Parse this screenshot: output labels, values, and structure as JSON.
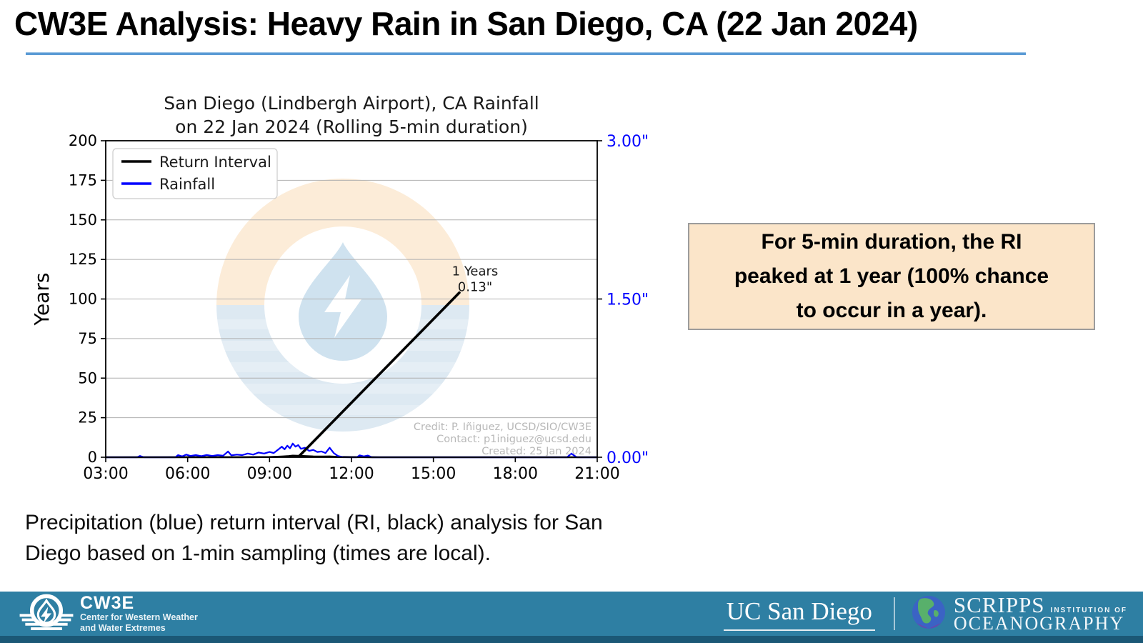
{
  "slide": {
    "title": "CW3E Analysis: Heavy Rain in San Diego, CA (22 Jan 2024)",
    "underline_color": "#5b9bd5",
    "caption_line1": "Precipitation (blue) return interval (RI, black) analysis for San",
    "caption_line2": "Diego based on 1-min sampling (times are local).",
    "callout": {
      "line1": "For 5-min duration, the RI",
      "line2": "peaked at 1 year (100% chance",
      "line3": "to occur in a year).",
      "bg_color": "#fbe5c9",
      "border_color": "#9c9c9c"
    }
  },
  "chart_data": {
    "type": "line",
    "title_line1": "San Diego (Lindbergh Airport), CA Rainfall",
    "title_line2": "on 22 Jan 2024 (Rolling 5-min duration)",
    "ylabel_left": "Years",
    "left_range": [
      0,
      200
    ],
    "left_ticks": [
      0,
      25,
      50,
      75,
      100,
      125,
      150,
      175,
      200
    ],
    "right_range": [
      0,
      3
    ],
    "right_tick_values": [
      0,
      1.5,
      3
    ],
    "right_tick_labels": [
      "0.00\"",
      "1.50\"",
      "3.00\""
    ],
    "right_axis_color": "#0000ff",
    "x_range_hours": [
      3,
      21
    ],
    "x_tick_hours": [
      3,
      6,
      9,
      12,
      15,
      18,
      21
    ],
    "x_tick_labels": [
      "03:00",
      "06:00",
      "09:00",
      "12:00",
      "15:00",
      "18:00",
      "21:00"
    ],
    "grid": "horizontal",
    "gridline_color": "#b0b0b0",
    "legend_position": "upper left",
    "legend": [
      {
        "label": "Return Interval",
        "color": "#000000"
      },
      {
        "label": "Rainfall",
        "color": "#0000ff"
      }
    ],
    "series": [
      {
        "name": "Return Interval",
        "axis": "left",
        "color": "#000000",
        "width": 2.6,
        "points": [
          [
            3,
            0
          ],
          [
            8,
            0.05
          ],
          [
            9,
            0.15
          ],
          [
            9.3,
            0.3
          ],
          [
            9.5,
            0.5
          ],
          [
            9.7,
            0.7
          ],
          [
            9.85,
            1.0
          ],
          [
            10.05,
            0.9
          ],
          [
            10.3,
            0.7
          ],
          [
            10.6,
            0.5
          ],
          [
            11.0,
            0.45
          ],
          [
            11.2,
            0.5
          ],
          [
            11.5,
            0.2
          ],
          [
            12.0,
            0.08
          ],
          [
            12.7,
            0.05
          ],
          [
            13,
            0.02
          ],
          [
            21,
            0.02
          ]
        ]
      },
      {
        "name": "Rainfall",
        "axis": "right",
        "color": "#0000ff",
        "width": 2.2,
        "points": [
          [
            3,
            0
          ],
          [
            4.15,
            0
          ],
          [
            4.25,
            0.012
          ],
          [
            4.4,
            0
          ],
          [
            5.55,
            0
          ],
          [
            5.65,
            0.02
          ],
          [
            5.8,
            0.008
          ],
          [
            5.95,
            0.025
          ],
          [
            6.1,
            0.012
          ],
          [
            6.3,
            0.02
          ],
          [
            6.5,
            0.01
          ],
          [
            6.7,
            0.022
          ],
          [
            6.9,
            0.012
          ],
          [
            7.1,
            0.02
          ],
          [
            7.3,
            0.015
          ],
          [
            7.48,
            0.055
          ],
          [
            7.6,
            0.018
          ],
          [
            7.8,
            0.025
          ],
          [
            8.0,
            0.02
          ],
          [
            8.2,
            0.035
          ],
          [
            8.4,
            0.025
          ],
          [
            8.6,
            0.045
          ],
          [
            8.8,
            0.035
          ],
          [
            9.0,
            0.05
          ],
          [
            9.15,
            0.04
          ],
          [
            9.3,
            0.07
          ],
          [
            9.45,
            0.1
          ],
          [
            9.55,
            0.075
          ],
          [
            9.65,
            0.11
          ],
          [
            9.75,
            0.085
          ],
          [
            9.85,
            0.13
          ],
          [
            9.95,
            0.1
          ],
          [
            10.05,
            0.115
          ],
          [
            10.15,
            0.08
          ],
          [
            10.3,
            0.09
          ],
          [
            10.45,
            0.06
          ],
          [
            10.6,
            0.07
          ],
          [
            10.75,
            0.05
          ],
          [
            10.9,
            0.055
          ],
          [
            11.05,
            0.04
          ],
          [
            11.2,
            0.09
          ],
          [
            11.35,
            0.04
          ],
          [
            11.5,
            0.012
          ],
          [
            11.7,
            0
          ],
          [
            12.2,
            0
          ],
          [
            12.3,
            0.018
          ],
          [
            12.45,
            0.008
          ],
          [
            12.6,
            0.016
          ],
          [
            12.75,
            0
          ],
          [
            19.9,
            0
          ],
          [
            20.05,
            0.035
          ],
          [
            20.25,
            0
          ],
          [
            21,
            0
          ]
        ]
      }
    ],
    "annotation": {
      "line1": "1 Years",
      "line2": "0.13\"",
      "arrow_from_hour": 10.1,
      "arrow_from_years": 1,
      "arrow_to_hour": 15.95,
      "arrow_to_years": 104
    },
    "credit_line1": "Credit: P. Iñiguez, UCSD/SIO/CW3E",
    "credit_line2": "Contact: p1iniguez@ucsd.edu",
    "credit_line3": "Created: 25 Jan 2024",
    "credit_color": "#b8b8b8",
    "watermark": {
      "name": "cw3e-logo-watermark",
      "peach": "#fcecd8",
      "light_blue": "#dde9f2",
      "drop_blue": "#cfe2ef"
    }
  },
  "footer": {
    "bar_color": "#2e7fa3",
    "strip_color": "#1b5876",
    "cw3e": {
      "name": "CW3E",
      "tagline_line1": "Center for Western Weather",
      "tagline_line2": "and Water Extremes"
    },
    "ucsd": {
      "name": "UC San Diego"
    },
    "scripps": {
      "name": "SCRIPPS",
      "institution_of": "INSTITUTION OF",
      "oceanography": "OCEANOGRAPHY"
    }
  }
}
